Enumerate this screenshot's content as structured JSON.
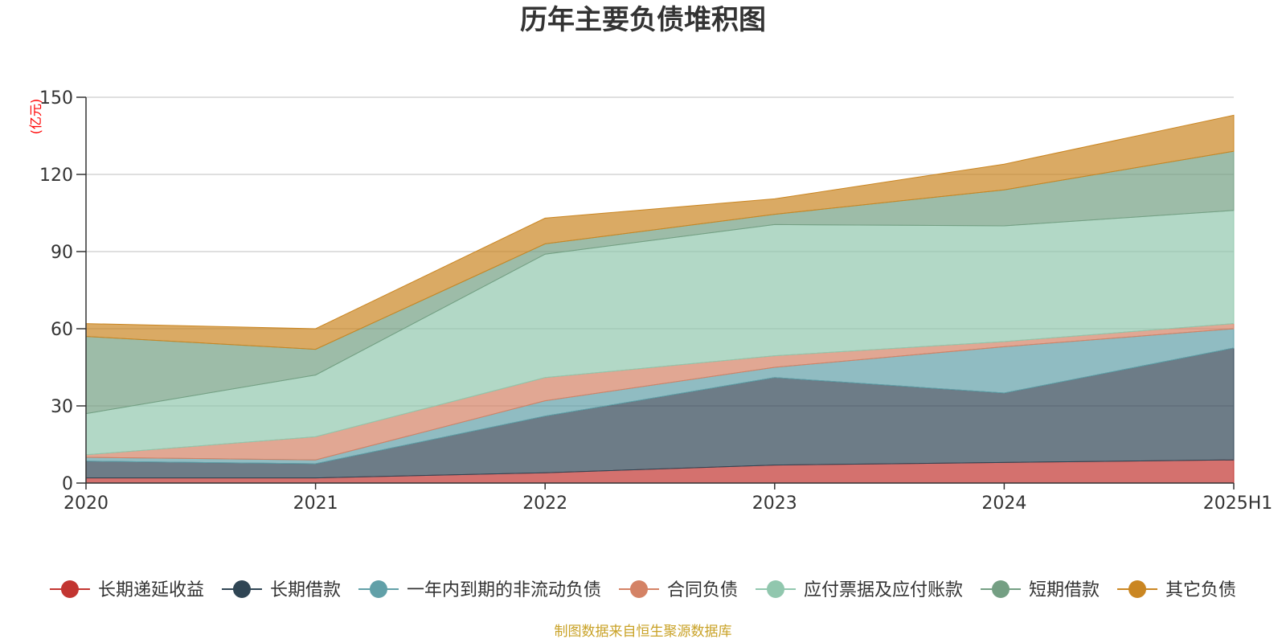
{
  "chart_data": {
    "type": "area",
    "stacked": true,
    "title": "历年主要负债堆积图",
    "y_unit_label": "(亿元)",
    "categories": [
      "2020",
      "2021",
      "2022",
      "2023",
      "2024",
      "2025H1"
    ],
    "ylim": [
      0,
      150
    ],
    "yticks": [
      0,
      30,
      60,
      90,
      120,
      150
    ],
    "grid": true,
    "legend_position": "bottom",
    "series": [
      {
        "name": "长期递延收益",
        "color": "#c23531",
        "values": [
          2,
          2,
          4,
          7,
          8,
          9
        ]
      },
      {
        "name": "长期借款",
        "color": "#2f4554",
        "values": [
          6.5,
          5.5,
          22,
          34,
          27,
          43.5
        ]
      },
      {
        "name": "一年内到期的非流动负债",
        "color": "#61a0a8",
        "values": [
          1.5,
          1.5,
          6,
          4,
          18,
          7.5
        ]
      },
      {
        "name": "合同负债",
        "color": "#d48265",
        "values": [
          1,
          9,
          9,
          4.5,
          2,
          2
        ]
      },
      {
        "name": "应付票据及应付账款",
        "color": "#91c7ae",
        "values": [
          16,
          24,
          48,
          51,
          45,
          44
        ]
      },
      {
        "name": "短期借款",
        "color": "#749f83",
        "values": [
          30,
          10,
          4,
          4,
          14,
          23
        ]
      },
      {
        "name": "其它负债",
        "color": "#ca8622",
        "values": [
          5,
          8,
          10,
          6,
          10,
          14
        ]
      }
    ]
  },
  "source_note": "制图数据来自恒生聚源数据库"
}
